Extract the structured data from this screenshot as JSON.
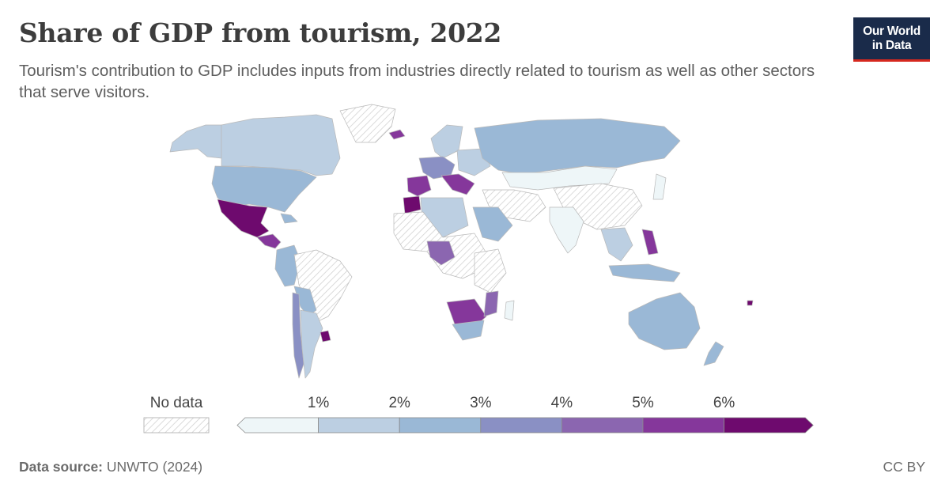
{
  "header": {
    "title": "Share of GDP from tourism, 2022",
    "subtitle": "Tourism's contribution to GDP includes inputs from industries directly related to tourism as well as other sectors that serve visitors."
  },
  "logo": {
    "line1": "Our World",
    "line2": "in Data",
    "bg_color": "#1a2b4a",
    "accent_color": "#d6281e"
  },
  "legend": {
    "no_data_label": "No data",
    "ticks": [
      "1%",
      "2%",
      "3%",
      "4%",
      "5%",
      "6%"
    ],
    "bin_colors": [
      "#eef6f8",
      "#bccfe2",
      "#9ab8d6",
      "#8a90c4",
      "#8b66b0",
      "#85379b",
      "#6e0a6e"
    ],
    "no_data_pattern_color": "#dcdcdc"
  },
  "map": {
    "type": "choropleth",
    "variable": "Share of GDP from tourism",
    "year": 2022,
    "unit": "%",
    "ocean_color": "#ffffff",
    "border_color": "#b9b9b9"
  },
  "footer": {
    "source_label": "Data source:",
    "source_value": "UNWTO (2024)",
    "license": "CC BY"
  }
}
